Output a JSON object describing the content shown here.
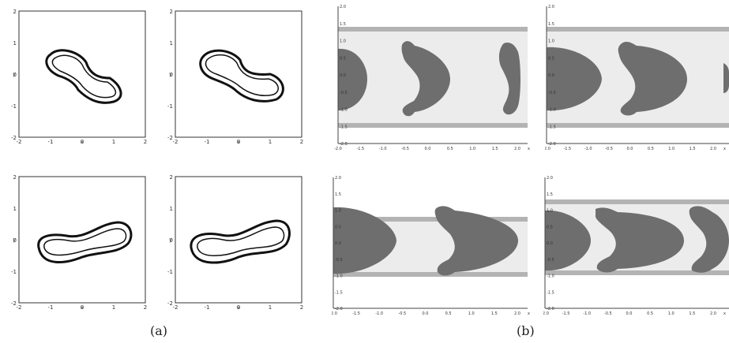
{
  "figure": {
    "captions": {
      "a": "(a)",
      "b": "(b)"
    }
  },
  "panel_a": {
    "x_ticks": [
      "-2",
      "-1",
      "0",
      "1",
      "2"
    ],
    "y_ticks": [
      "2",
      "1",
      "0",
      "-1",
      "-2"
    ],
    "xlabel": "x",
    "ylabel": "y"
  },
  "panel_b": {
    "x_ticks": [
      "-2.0",
      "-1.5",
      "-1.0",
      "-0.5",
      "0.0",
      "0.5",
      "1.0",
      "1.5",
      "2.0"
    ],
    "y_ticks_top": [
      "2.0",
      "1.5",
      "1.0",
      "0.5",
      "0.0",
      "-0.5",
      "-1.0",
      "-1.5",
      "-2.0"
    ],
    "xlabel": "x",
    "colors": {
      "droplet": "#6e6e6e",
      "channel": "#ececec",
      "wall": "#b3b3b3"
    }
  }
}
